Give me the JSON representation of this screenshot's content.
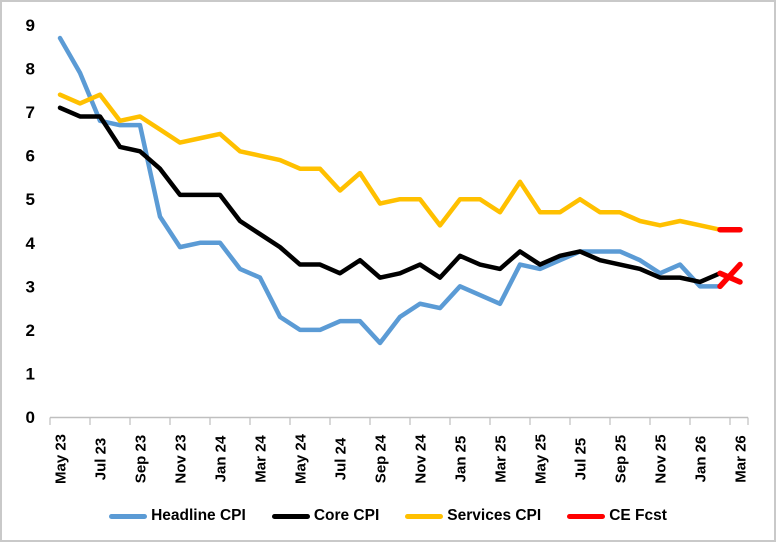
{
  "figure": {
    "background": "#FFFFFF",
    "border_color": "#C9C9C9"
  },
  "axes": {
    "axis_color": "#BFBFBF",
    "label_color": "#000000",
    "y_tick_labels": [
      "0",
      "1",
      "2",
      "3",
      "4",
      "5",
      "6",
      "7",
      "8",
      "9"
    ],
    "x_tick_labels": [
      "May 23",
      "Jul 23",
      "Sep 23",
      "Nov 23",
      "Jan 24",
      "Mar 24",
      "May 24",
      "Jul 24",
      "Sep 24",
      "Nov 24",
      "Jan 25",
      "Mar 25",
      "May 25",
      "Jul 25",
      "Sep 25",
      "Nov 25",
      "Jan 26",
      "Mar 26"
    ]
  },
  "legend": [
    {
      "label": "Headline CPI",
      "color": "#5B9BD5"
    },
    {
      "label": "Core CPI",
      "color": "#000000"
    },
    {
      "label": "Services CPI",
      "color": "#FFC000"
    },
    {
      "label": "CE Fcst",
      "color": "#FF0000"
    }
  ],
  "chart_data": {
    "type": "line",
    "title": "",
    "xlabel": "",
    "ylabel": "",
    "ylim": [
      0,
      9
    ],
    "grid": false,
    "legend_position": "bottom",
    "x": [
      "May 23",
      "Jun 23",
      "Jul 23",
      "Aug 23",
      "Sep 23",
      "Oct 23",
      "Nov 23",
      "Dec 23",
      "Jan 24",
      "Feb 24",
      "Mar 24",
      "Apr 24",
      "May 24",
      "Jun 24",
      "Jul 24",
      "Aug 24",
      "Sep 24",
      "Oct 24",
      "Nov 24",
      "Dec 24",
      "Jan 25",
      "Feb 25",
      "Mar 25",
      "Apr 25",
      "May 25",
      "Jun 25",
      "Jul 25",
      "Aug 25",
      "Sep 25",
      "Oct 25",
      "Nov 25",
      "Dec 25",
      "Jan 26",
      "Feb 26",
      "Mar 26"
    ],
    "series": [
      {
        "name": "Headline CPI",
        "color": "#5B9BD5",
        "values": [
          8.7,
          7.9,
          6.8,
          6.7,
          6.7,
          4.6,
          3.9,
          4.0,
          4.0,
          3.4,
          3.2,
          2.3,
          2.0,
          2.0,
          2.2,
          2.2,
          1.7,
          2.3,
          2.6,
          2.5,
          3.0,
          2.8,
          2.6,
          3.5,
          3.4,
          3.6,
          3.8,
          3.8,
          3.8,
          3.6,
          3.3,
          3.5,
          3.0,
          3.0,
          null
        ]
      },
      {
        "name": "Core CPI",
        "color": "#000000",
        "values": [
          7.1,
          6.9,
          6.9,
          6.2,
          6.1,
          5.7,
          5.1,
          5.1,
          5.1,
          4.5,
          4.2,
          3.9,
          3.5,
          3.5,
          3.3,
          3.6,
          3.2,
          3.3,
          3.5,
          3.2,
          3.7,
          3.5,
          3.4,
          3.8,
          3.5,
          3.7,
          3.8,
          3.6,
          3.5,
          3.4,
          3.2,
          3.2,
          3.1,
          3.3,
          null
        ]
      },
      {
        "name": "Services CPI",
        "color": "#FFC000",
        "values": [
          7.4,
          7.2,
          7.4,
          6.8,
          6.9,
          6.6,
          6.3,
          6.4,
          6.5,
          6.1,
          6.0,
          5.9,
          5.7,
          5.7,
          5.2,
          5.6,
          4.9,
          5.0,
          5.0,
          4.4,
          5.0,
          5.0,
          4.7,
          5.4,
          4.7,
          4.7,
          5.0,
          4.7,
          4.7,
          4.5,
          4.4,
          4.5,
          4.4,
          4.3,
          null
        ]
      },
      {
        "name": "CE Fcst",
        "color": "#FF0000",
        "forecast_segments": [
          {
            "for": "Headline CPI",
            "x": [
              "Feb 26",
              "Mar 26"
            ],
            "values": [
              3.0,
              3.5
            ]
          },
          {
            "for": "Core CPI",
            "x": [
              "Feb 26",
              "Mar 26"
            ],
            "values": [
              3.3,
              3.1
            ]
          },
          {
            "for": "Services CPI",
            "x": [
              "Feb 26",
              "Mar 26"
            ],
            "values": [
              4.3,
              4.3
            ]
          }
        ]
      }
    ]
  }
}
